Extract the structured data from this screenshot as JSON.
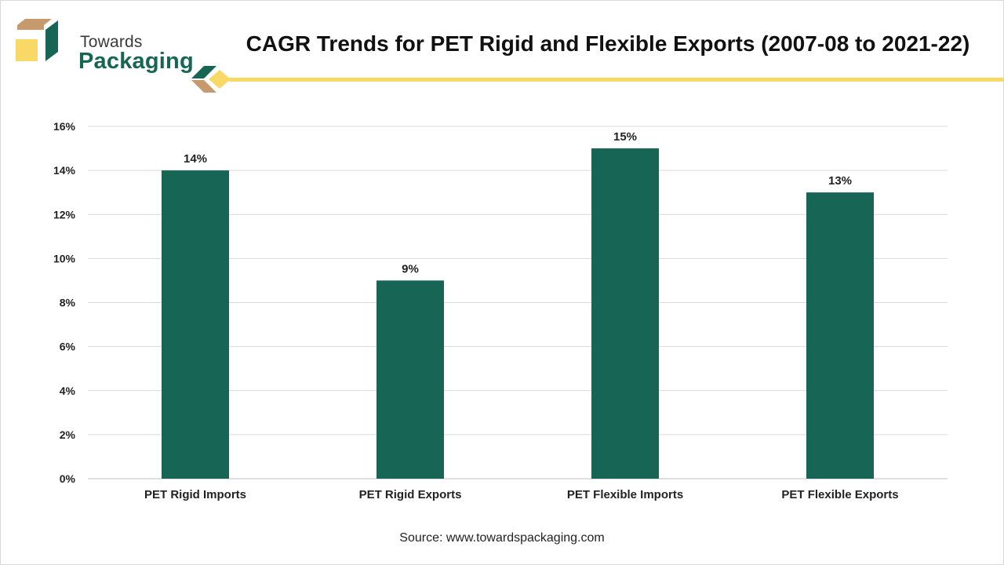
{
  "brand": {
    "line1": "Towards",
    "line2": "Packaging",
    "colors": {
      "green": "#176555",
      "gold": "#f8d966",
      "tan": "#c69a6d"
    }
  },
  "chart_data": {
    "type": "bar",
    "title": "CAGR Trends for PET Rigid and Flexible Exports (2007-08 to 2021-22)",
    "categories": [
      "PET Rigid Imports",
      "PET Rigid Exports",
      "PET Flexible Imports",
      "PET Flexible Exports"
    ],
    "values": [
      14,
      9,
      15,
      13
    ],
    "data_labels": [
      "14%",
      "9%",
      "15%",
      "13%"
    ],
    "ylim": [
      0,
      16
    ],
    "yticks": [
      0,
      2,
      4,
      6,
      8,
      10,
      12,
      14,
      16
    ],
    "ytick_labels": [
      "0%",
      "2%",
      "4%",
      "6%",
      "8%",
      "10%",
      "12%",
      "14%",
      "16%"
    ],
    "xlabel": "",
    "ylabel": "",
    "grid": true,
    "bar_color": "#176555"
  },
  "footer": {
    "source": "Source: www.towardspackaging.com"
  }
}
